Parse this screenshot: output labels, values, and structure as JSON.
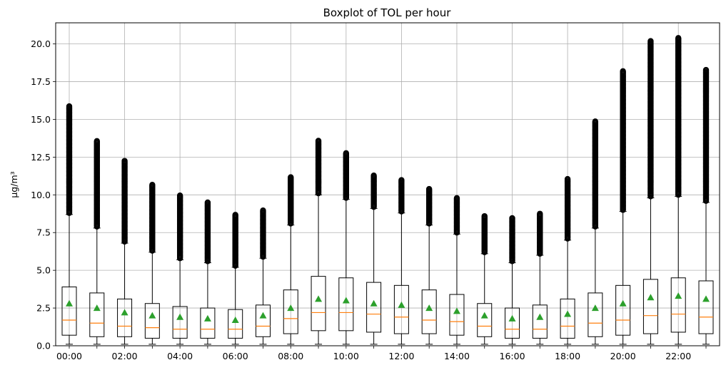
{
  "chart_data": {
    "type": "boxplot",
    "title": "Boxplot of TOL per hour",
    "ylabel": "µg/m³",
    "ylim": [
      0,
      21.4
    ],
    "yticks": [
      0.0,
      2.5,
      5.0,
      7.5,
      10.0,
      12.5,
      15.0,
      17.5,
      20.0
    ],
    "ytick_labels": [
      "0.0",
      "2.5",
      "5.0",
      "7.5",
      "10.0",
      "12.5",
      "15.0",
      "17.5",
      "20.0"
    ],
    "grid": true,
    "categories": [
      "00:00",
      "01:00",
      "02:00",
      "03:00",
      "04:00",
      "05:00",
      "06:00",
      "07:00",
      "08:00",
      "09:00",
      "10:00",
      "11:00",
      "12:00",
      "13:00",
      "14:00",
      "15:00",
      "16:00",
      "17:00",
      "18:00",
      "19:00",
      "20:00",
      "21:00",
      "22:00",
      "23:00"
    ],
    "xtick_labels_shown": [
      "00:00",
      "",
      "02:00",
      "",
      "04:00",
      "",
      "06:00",
      "",
      "08:00",
      "",
      "10:00",
      "",
      "12:00",
      "",
      "14:00",
      "",
      "16:00",
      "",
      "18:00",
      "",
      "20:00",
      "",
      "22:00",
      ""
    ],
    "boxes": [
      {
        "whisker_low": 0.1,
        "q1": 0.7,
        "median": 1.7,
        "q3": 3.9,
        "whisker_high": 8.7,
        "mean": 2.8,
        "flier_min": 8.8,
        "flier_max": 15.9
      },
      {
        "whisker_low": 0.1,
        "q1": 0.6,
        "median": 1.5,
        "q3": 3.5,
        "whisker_high": 7.8,
        "mean": 2.5,
        "flier_min": 7.9,
        "flier_max": 13.6
      },
      {
        "whisker_low": 0.1,
        "q1": 0.6,
        "median": 1.3,
        "q3": 3.1,
        "whisker_high": 6.8,
        "mean": 2.2,
        "flier_min": 6.9,
        "flier_max": 12.3
      },
      {
        "whisker_low": 0.1,
        "q1": 0.5,
        "median": 1.2,
        "q3": 2.8,
        "whisker_high": 6.2,
        "mean": 2.0,
        "flier_min": 6.3,
        "flier_max": 10.7
      },
      {
        "whisker_low": 0.1,
        "q1": 0.5,
        "median": 1.1,
        "q3": 2.6,
        "whisker_high": 5.7,
        "mean": 1.9,
        "flier_min": 5.8,
        "flier_max": 10.0
      },
      {
        "whisker_low": 0.1,
        "q1": 0.5,
        "median": 1.1,
        "q3": 2.5,
        "whisker_high": 5.5,
        "mean": 1.8,
        "flier_min": 5.6,
        "flier_max": 9.5
      },
      {
        "whisker_low": 0.1,
        "q1": 0.5,
        "median": 1.1,
        "q3": 2.4,
        "whisker_high": 5.2,
        "mean": 1.7,
        "flier_min": 5.3,
        "flier_max": 8.7
      },
      {
        "whisker_low": 0.1,
        "q1": 0.6,
        "median": 1.3,
        "q3": 2.7,
        "whisker_high": 5.8,
        "mean": 2.0,
        "flier_min": 5.9,
        "flier_max": 9.0
      },
      {
        "whisker_low": 0.1,
        "q1": 0.8,
        "median": 1.8,
        "q3": 3.7,
        "whisker_high": 8.0,
        "mean": 2.5,
        "flier_min": 8.1,
        "flier_max": 11.2
      },
      {
        "whisker_low": 0.1,
        "q1": 1.0,
        "median": 2.2,
        "q3": 4.6,
        "whisker_high": 10.0,
        "mean": 3.1,
        "flier_min": 10.1,
        "flier_max": 13.6
      },
      {
        "whisker_low": 0.1,
        "q1": 1.0,
        "median": 2.2,
        "q3": 4.5,
        "whisker_high": 9.7,
        "mean": 3.0,
        "flier_min": 9.8,
        "flier_max": 12.8
      },
      {
        "whisker_low": 0.1,
        "q1": 0.9,
        "median": 2.1,
        "q3": 4.2,
        "whisker_high": 9.1,
        "mean": 2.8,
        "flier_min": 9.2,
        "flier_max": 11.3
      },
      {
        "whisker_low": 0.1,
        "q1": 0.8,
        "median": 1.9,
        "q3": 4.0,
        "whisker_high": 8.8,
        "mean": 2.7,
        "flier_min": 8.9,
        "flier_max": 11.0
      },
      {
        "whisker_low": 0.1,
        "q1": 0.8,
        "median": 1.7,
        "q3": 3.7,
        "whisker_high": 8.0,
        "mean": 2.5,
        "flier_min": 8.1,
        "flier_max": 10.4
      },
      {
        "whisker_low": 0.1,
        "q1": 0.7,
        "median": 1.6,
        "q3": 3.4,
        "whisker_high": 7.4,
        "mean": 2.3,
        "flier_min": 7.5,
        "flier_max": 9.8
      },
      {
        "whisker_low": 0.1,
        "q1": 0.6,
        "median": 1.3,
        "q3": 2.8,
        "whisker_high": 6.1,
        "mean": 2.0,
        "flier_min": 6.2,
        "flier_max": 8.6
      },
      {
        "whisker_low": 0.1,
        "q1": 0.5,
        "median": 1.1,
        "q3": 2.5,
        "whisker_high": 5.5,
        "mean": 1.8,
        "flier_min": 5.6,
        "flier_max": 8.5
      },
      {
        "whisker_low": 0.1,
        "q1": 0.5,
        "median": 1.1,
        "q3": 2.7,
        "whisker_high": 6.0,
        "mean": 1.9,
        "flier_min": 6.1,
        "flier_max": 8.8
      },
      {
        "whisker_low": 0.1,
        "q1": 0.5,
        "median": 1.3,
        "q3": 3.1,
        "whisker_high": 7.0,
        "mean": 2.1,
        "flier_min": 7.1,
        "flier_max": 11.1
      },
      {
        "whisker_low": 0.1,
        "q1": 0.6,
        "median": 1.5,
        "q3": 3.5,
        "whisker_high": 7.8,
        "mean": 2.5,
        "flier_min": 7.9,
        "flier_max": 14.9
      },
      {
        "whisker_low": 0.1,
        "q1": 0.7,
        "median": 1.7,
        "q3": 4.0,
        "whisker_high": 8.9,
        "mean": 2.8,
        "flier_min": 9.0,
        "flier_max": 18.2
      },
      {
        "whisker_low": 0.1,
        "q1": 0.8,
        "median": 2.0,
        "q3": 4.4,
        "whisker_high": 9.8,
        "mean": 3.2,
        "flier_min": 9.9,
        "flier_max": 20.2
      },
      {
        "whisker_low": 0.1,
        "q1": 0.9,
        "median": 2.1,
        "q3": 4.5,
        "whisker_high": 9.9,
        "mean": 3.3,
        "flier_min": 10.0,
        "flier_max": 20.4
      },
      {
        "whisker_low": 0.1,
        "q1": 0.8,
        "median": 1.9,
        "q3": 4.3,
        "whisker_high": 9.5,
        "mean": 3.1,
        "flier_min": 9.6,
        "flier_max": 18.3
      }
    ],
    "colors": {
      "box": "#000000",
      "median": "#ff7f0e",
      "mean": "#2ca02c",
      "flier": "#000000",
      "grid": "#b0b0b0"
    }
  }
}
